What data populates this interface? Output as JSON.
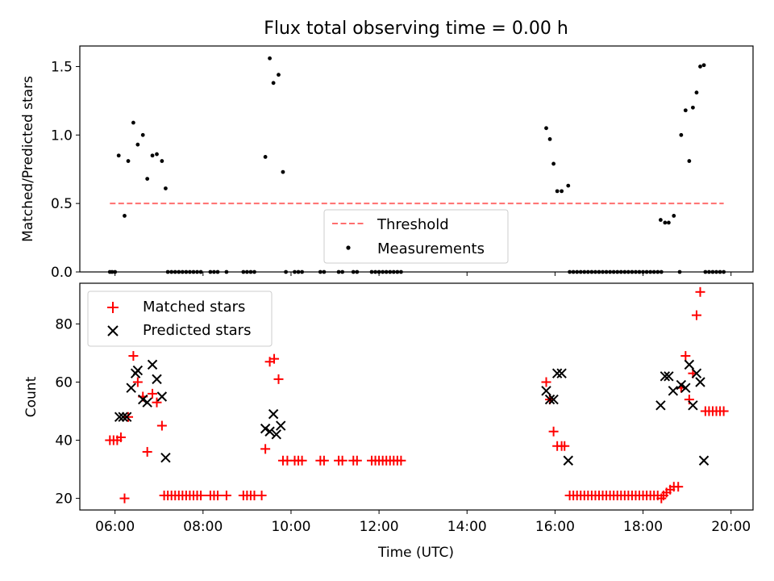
{
  "title": "Flux total observing time = 0.00 h",
  "colors": {
    "threshold": "#ff6e6e",
    "measurements": "#000000",
    "matched": "#ff0000",
    "predicted": "#000000"
  },
  "chart_data": [
    {
      "type": "scatter",
      "ylabel": "Matched/Predicted stars",
      "xlim": [
        "05:12",
        "20:30"
      ],
      "ylim": [
        0,
        1.65
      ],
      "yticks": [
        "0.0",
        "0.5",
        "1.0",
        "1.5"
      ],
      "ytick_values": [
        0,
        0.5,
        1.0,
        1.5
      ],
      "legend": {
        "position": "lower-center",
        "entries": [
          "Threshold",
          "Measurements"
        ]
      },
      "threshold": {
        "name": "Threshold",
        "y": 0.5,
        "x_range": [
          "05:53",
          "19:50"
        ]
      },
      "series": [
        {
          "name": "Measurements",
          "marker": "dot",
          "points": [
            [
              "05:53",
              0
            ],
            [
              "05:56",
              0
            ],
            [
              "06:00",
              0
            ],
            [
              "06:05",
              0.85
            ],
            [
              "06:13",
              0.41
            ],
            [
              "06:18",
              0.81
            ],
            [
              "06:25",
              1.09
            ],
            [
              "06:31",
              0.93
            ],
            [
              "06:38",
              1.0
            ],
            [
              "06:44",
              0.68
            ],
            [
              "06:51",
              0.85
            ],
            [
              "06:57",
              0.86
            ],
            [
              "07:04",
              0.81
            ],
            [
              "07:09",
              0.61
            ],
            [
              "07:12",
              0
            ],
            [
              "07:17",
              0
            ],
            [
              "07:22",
              0
            ],
            [
              "07:27",
              0
            ],
            [
              "07:32",
              0
            ],
            [
              "07:37",
              0
            ],
            [
              "07:42",
              0
            ],
            [
              "07:47",
              0
            ],
            [
              "07:52",
              0
            ],
            [
              "07:57",
              0
            ],
            [
              "08:10",
              0
            ],
            [
              "08:15",
              0
            ],
            [
              "08:20",
              0
            ],
            [
              "08:32",
              0
            ],
            [
              "08:55",
              0
            ],
            [
              "09:00",
              0
            ],
            [
              "09:05",
              0
            ],
            [
              "09:10",
              0
            ],
            [
              "09:25",
              0.84
            ],
            [
              "09:31",
              1.56
            ],
            [
              "09:36",
              1.38
            ],
            [
              "09:43",
              1.44
            ],
            [
              "09:49",
              0.73
            ],
            [
              "09:53",
              0
            ],
            [
              "10:05",
              0
            ],
            [
              "10:10",
              0
            ],
            [
              "10:15",
              0
            ],
            [
              "10:40",
              0
            ],
            [
              "10:45",
              0
            ],
            [
              "11:05",
              0
            ],
            [
              "11:10",
              0
            ],
            [
              "11:25",
              0
            ],
            [
              "11:30",
              0
            ],
            [
              "11:50",
              0
            ],
            [
              "11:55",
              0
            ],
            [
              "12:00",
              0
            ],
            [
              "12:05",
              0
            ],
            [
              "12:10",
              0
            ],
            [
              "12:15",
              0
            ],
            [
              "12:20",
              0
            ],
            [
              "12:25",
              0
            ],
            [
              "12:30",
              0
            ],
            [
              "15:48",
              1.05
            ],
            [
              "15:53",
              0.97
            ],
            [
              "15:58",
              0.79
            ],
            [
              "16:03",
              0.59
            ],
            [
              "16:09",
              0.59
            ],
            [
              "16:18",
              0.63
            ],
            [
              "16:20",
              0
            ],
            [
              "16:25",
              0
            ],
            [
              "16:30",
              0
            ],
            [
              "16:35",
              0
            ],
            [
              "16:40",
              0
            ],
            [
              "16:45",
              0
            ],
            [
              "16:50",
              0
            ],
            [
              "16:55",
              0
            ],
            [
              "17:00",
              0
            ],
            [
              "17:05",
              0
            ],
            [
              "17:10",
              0
            ],
            [
              "17:15",
              0
            ],
            [
              "17:20",
              0
            ],
            [
              "17:25",
              0
            ],
            [
              "17:30",
              0
            ],
            [
              "17:35",
              0
            ],
            [
              "17:40",
              0
            ],
            [
              "17:45",
              0
            ],
            [
              "17:50",
              0
            ],
            [
              "17:55",
              0
            ],
            [
              "18:00",
              0
            ],
            [
              "18:05",
              0
            ],
            [
              "18:10",
              0
            ],
            [
              "18:15",
              0
            ],
            [
              "18:20",
              0
            ],
            [
              "18:25",
              0
            ],
            [
              "18:24",
              0.38
            ],
            [
              "18:30",
              0.36
            ],
            [
              "18:35",
              0.36
            ],
            [
              "18:42",
              0.41
            ],
            [
              "18:52",
              1.0
            ],
            [
              "18:58",
              1.18
            ],
            [
              "19:03",
              0.81
            ],
            [
              "19:08",
              1.2
            ],
            [
              "19:13",
              1.31
            ],
            [
              "19:18",
              1.5
            ],
            [
              "19:23",
              1.51
            ],
            [
              "18:50",
              0
            ],
            [
              "19:25",
              0
            ],
            [
              "19:30",
              0
            ],
            [
              "19:35",
              0
            ],
            [
              "19:40",
              0
            ],
            [
              "19:45",
              0
            ],
            [
              "19:50",
              0
            ]
          ]
        }
      ]
    },
    {
      "type": "scatter",
      "xlabel": "Time (UTC)",
      "ylabel": "Count",
      "xlim": [
        "05:12",
        "20:30"
      ],
      "ylim": [
        16,
        94
      ],
      "xticks": [
        "06:00",
        "08:00",
        "10:00",
        "12:00",
        "14:00",
        "16:00",
        "18:00",
        "20:00"
      ],
      "yticks": [
        "20",
        "40",
        "60",
        "80"
      ],
      "ytick_values": [
        20,
        40,
        60,
        80
      ],
      "legend": {
        "position": "top-left",
        "entries": [
          "Matched stars",
          "Predicted stars"
        ]
      },
      "series": [
        {
          "name": "Matched stars",
          "marker": "plus",
          "points": [
            [
              "05:53",
              40
            ],
            [
              "05:58",
              40
            ],
            [
              "06:03",
              40
            ],
            [
              "06:08",
              41
            ],
            [
              "06:13",
              20
            ],
            [
              "06:18",
              48
            ],
            [
              "06:25",
              69
            ],
            [
              "06:31",
              60
            ],
            [
              "06:38",
              55
            ],
            [
              "06:44",
              36
            ],
            [
              "06:51",
              56
            ],
            [
              "06:57",
              53
            ],
            [
              "07:04",
              45
            ],
            [
              "07:07",
              21
            ],
            [
              "07:12",
              21
            ],
            [
              "07:17",
              21
            ],
            [
              "07:22",
              21
            ],
            [
              "07:27",
              21
            ],
            [
              "07:32",
              21
            ],
            [
              "07:37",
              21
            ],
            [
              "07:42",
              21
            ],
            [
              "07:47",
              21
            ],
            [
              "07:52",
              21
            ],
            [
              "07:57",
              21
            ],
            [
              "08:10",
              21
            ],
            [
              "08:15",
              21
            ],
            [
              "08:20",
              21
            ],
            [
              "08:32",
              21
            ],
            [
              "08:55",
              21
            ],
            [
              "09:00",
              21
            ],
            [
              "09:05",
              21
            ],
            [
              "09:10",
              21
            ],
            [
              "09:20",
              21
            ],
            [
              "09:25",
              37
            ],
            [
              "09:31",
              67
            ],
            [
              "09:37",
              68
            ],
            [
              "09:43",
              61
            ],
            [
              "09:49",
              33
            ],
            [
              "09:55",
              33
            ],
            [
              "10:05",
              33
            ],
            [
              "10:10",
              33
            ],
            [
              "10:15",
              33
            ],
            [
              "10:40",
              33
            ],
            [
              "10:45",
              33
            ],
            [
              "11:05",
              33
            ],
            [
              "11:10",
              33
            ],
            [
              "11:25",
              33
            ],
            [
              "11:30",
              33
            ],
            [
              "11:50",
              33
            ],
            [
              "11:55",
              33
            ],
            [
              "12:00",
              33
            ],
            [
              "12:05",
              33
            ],
            [
              "12:10",
              33
            ],
            [
              "12:15",
              33
            ],
            [
              "12:20",
              33
            ],
            [
              "12:25",
              33
            ],
            [
              "12:30",
              33
            ],
            [
              "15:48",
              60
            ],
            [
              "15:53",
              54
            ],
            [
              "15:58",
              43
            ],
            [
              "16:03",
              38
            ],
            [
              "16:09",
              38
            ],
            [
              "16:13",
              38
            ],
            [
              "16:20",
              21
            ],
            [
              "16:25",
              21
            ],
            [
              "16:30",
              21
            ],
            [
              "16:35",
              21
            ],
            [
              "16:40",
              21
            ],
            [
              "16:45",
              21
            ],
            [
              "16:50",
              21
            ],
            [
              "16:55",
              21
            ],
            [
              "17:00",
              21
            ],
            [
              "17:05",
              21
            ],
            [
              "17:10",
              21
            ],
            [
              "17:15",
              21
            ],
            [
              "17:20",
              21
            ],
            [
              "17:25",
              21
            ],
            [
              "17:30",
              21
            ],
            [
              "17:35",
              21
            ],
            [
              "17:40",
              21
            ],
            [
              "17:45",
              21
            ],
            [
              "17:50",
              21
            ],
            [
              "17:55",
              21
            ],
            [
              "18:00",
              21
            ],
            [
              "18:05",
              21
            ],
            [
              "18:10",
              21
            ],
            [
              "18:15",
              21
            ],
            [
              "18:20",
              21
            ],
            [
              "18:25",
              20
            ],
            [
              "18:28",
              21
            ],
            [
              "18:32",
              22
            ],
            [
              "18:37",
              23
            ],
            [
              "18:42",
              24
            ],
            [
              "18:48",
              24
            ],
            [
              "18:52",
              58
            ],
            [
              "18:58",
              69
            ],
            [
              "19:03",
              54
            ],
            [
              "19:08",
              63
            ],
            [
              "19:13",
              83
            ],
            [
              "19:18",
              91
            ],
            [
              "19:25",
              50
            ],
            [
              "19:30",
              50
            ],
            [
              "19:35",
              50
            ],
            [
              "19:40",
              50
            ],
            [
              "19:45",
              50
            ],
            [
              "19:50",
              50
            ]
          ]
        },
        {
          "name": "Predicted stars",
          "marker": "x",
          "points": [
            [
              "06:06",
              48
            ],
            [
              "06:11",
              48
            ],
            [
              "06:16",
              48
            ],
            [
              "06:22",
              58
            ],
            [
              "06:28",
              63
            ],
            [
              "06:31",
              64
            ],
            [
              "06:38",
              54
            ],
            [
              "06:44",
              53
            ],
            [
              "06:51",
              66
            ],
            [
              "06:57",
              61
            ],
            [
              "07:04",
              55
            ],
            [
              "07:09",
              34
            ],
            [
              "09:25",
              44
            ],
            [
              "09:31",
              43
            ],
            [
              "09:36",
              49
            ],
            [
              "09:40",
              42
            ],
            [
              "09:46",
              45
            ],
            [
              "15:48",
              57
            ],
            [
              "15:53",
              54
            ],
            [
              "15:58",
              54
            ],
            [
              "16:03",
              63
            ],
            [
              "16:09",
              63
            ],
            [
              "16:18",
              33
            ],
            [
              "18:24",
              52
            ],
            [
              "18:30",
              62
            ],
            [
              "18:35",
              62
            ],
            [
              "18:41",
              57
            ],
            [
              "18:52",
              59
            ],
            [
              "18:58",
              58
            ],
            [
              "19:03",
              66
            ],
            [
              "19:08",
              52
            ],
            [
              "19:13",
              63
            ],
            [
              "19:18",
              60
            ],
            [
              "19:23",
              33
            ]
          ]
        }
      ]
    }
  ]
}
